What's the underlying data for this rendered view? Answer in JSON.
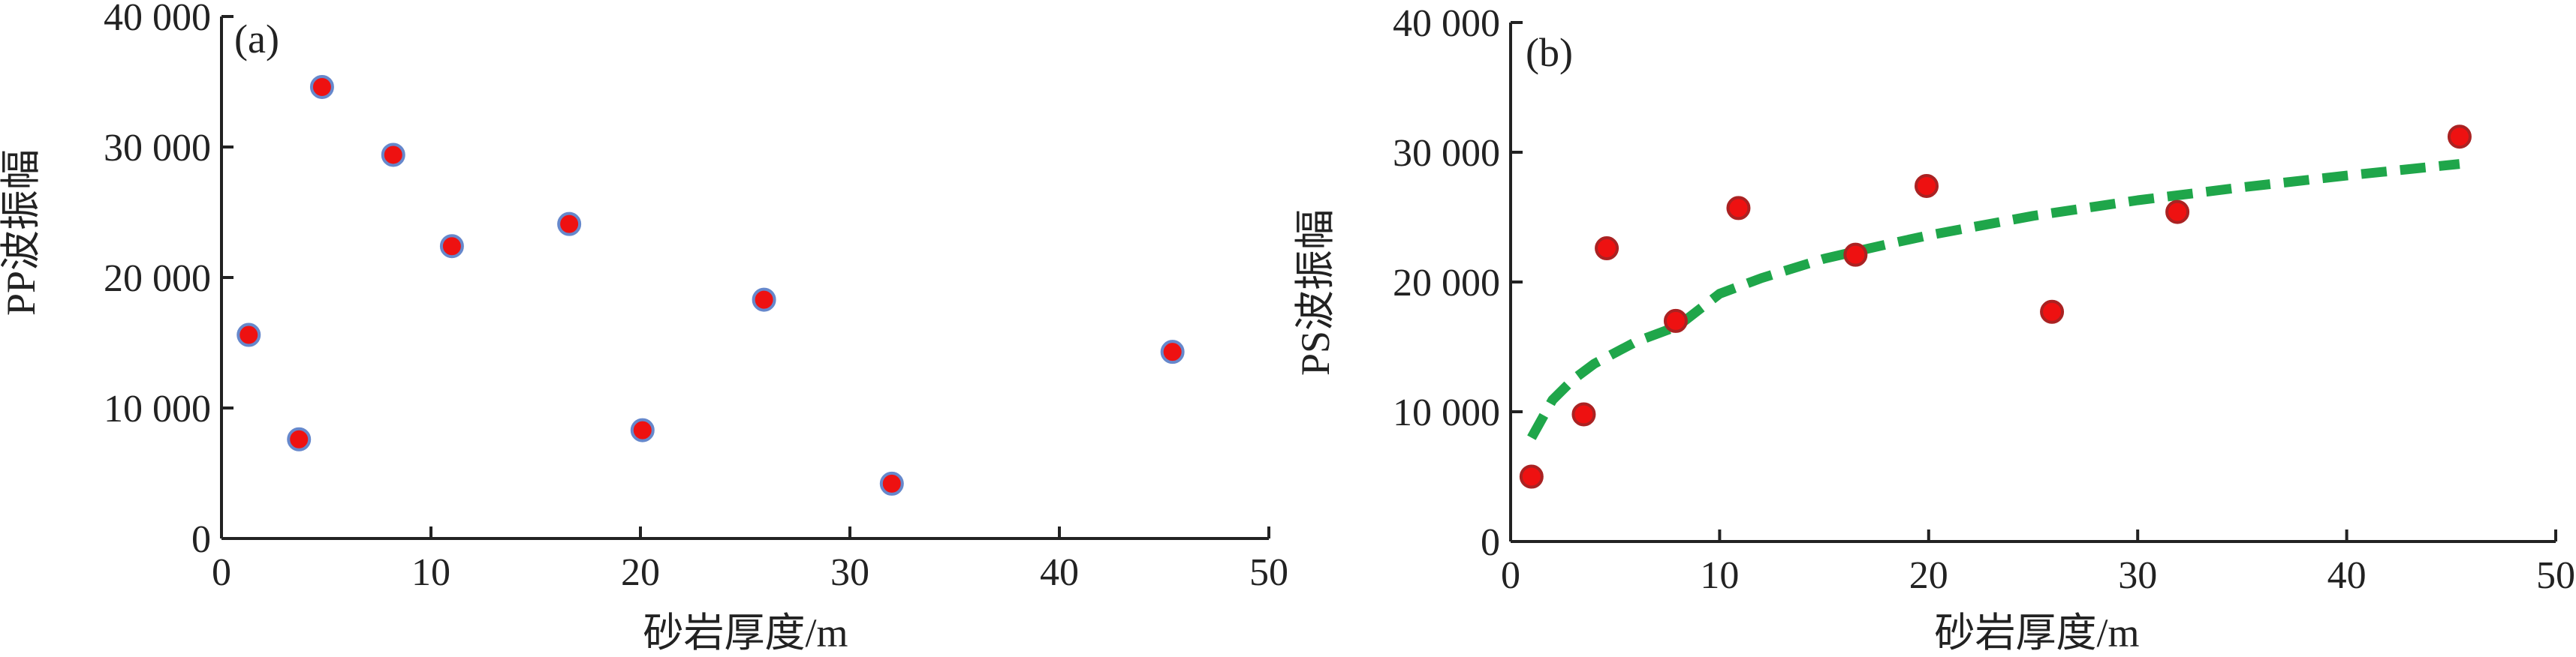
{
  "chart_data": [
    {
      "panel": "(a)",
      "type": "scatter",
      "xlabel": "砂岩厚度/m",
      "ylabel": "PP波振幅",
      "xlim": [
        0,
        50
      ],
      "ylim": [
        0,
        40000
      ],
      "xticks": [
        0,
        10,
        20,
        30,
        40,
        50
      ],
      "yticks": [
        0,
        10000,
        20000,
        30000,
        40000
      ],
      "xtick_labels": [
        "0",
        "10",
        "20",
        "30",
        "40",
        "50"
      ],
      "ytick_labels": [
        "0",
        "10 000",
        "20 000",
        "30 000",
        "40 000"
      ],
      "marker_color": "#ee1111",
      "marker_edge": "#6688cc",
      "points": [
        {
          "x": 1.3,
          "y": 15600
        },
        {
          "x": 3.7,
          "y": 7600
        },
        {
          "x": 4.8,
          "y": 34600
        },
        {
          "x": 8.2,
          "y": 29400
        },
        {
          "x": 11.0,
          "y": 22400
        },
        {
          "x": 16.6,
          "y": 24100
        },
        {
          "x": 20.1,
          "y": 8300
        },
        {
          "x": 25.9,
          "y": 18300
        },
        {
          "x": 32.0,
          "y": 4200
        },
        {
          "x": 45.4,
          "y": 14300
        }
      ]
    },
    {
      "panel": "(b)",
      "type": "scatter",
      "xlabel": "砂岩厚度/m",
      "ylabel": "PS波振幅",
      "xlim": [
        0,
        50
      ],
      "ylim": [
        0,
        40000
      ],
      "xticks": [
        0,
        10,
        20,
        30,
        40,
        50
      ],
      "yticks": [
        0,
        10000,
        20000,
        30000,
        40000
      ],
      "xtick_labels": [
        "0",
        "10",
        "20",
        "30",
        "40",
        "50"
      ],
      "ytick_labels": [
        "0",
        "10 000",
        "20 000",
        "30 000",
        "40 000"
      ],
      "marker_color": "#ee1111",
      "marker_edge": "#aa2222",
      "points": [
        {
          "x": 1.0,
          "y": 5000
        },
        {
          "x": 3.5,
          "y": 9800
        },
        {
          "x": 4.6,
          "y": 22600
        },
        {
          "x": 7.9,
          "y": 17000
        },
        {
          "x": 10.9,
          "y": 25700
        },
        {
          "x": 16.5,
          "y": 22100
        },
        {
          "x": 19.9,
          "y": 27400
        },
        {
          "x": 25.9,
          "y": 17700
        },
        {
          "x": 31.9,
          "y": 25400
        },
        {
          "x": 45.4,
          "y": 31200
        }
      ],
      "trend": {
        "style": "dashed",
        "color": "#1fa64a",
        "points": [
          {
            "x": 1.0,
            "y": 8000
          },
          {
            "x": 2.0,
            "y": 10900
          },
          {
            "x": 3.0,
            "y": 12500
          },
          {
            "x": 4.0,
            "y": 13700
          },
          {
            "x": 6.0,
            "y": 15400
          },
          {
            "x": 8.0,
            "y": 16600
          },
          {
            "x": 10.0,
            "y": 19100
          },
          {
            "x": 12.0,
            "y": 20300
          },
          {
            "x": 15.0,
            "y": 21800
          },
          {
            "x": 18.0,
            "y": 22900
          },
          {
            "x": 20.0,
            "y": 23600
          },
          {
            "x": 25.0,
            "y": 25100
          },
          {
            "x": 30.0,
            "y": 26300
          },
          {
            "x": 35.0,
            "y": 27300
          },
          {
            "x": 40.0,
            "y": 28200
          },
          {
            "x": 45.4,
            "y": 29100
          }
        ]
      }
    }
  ]
}
